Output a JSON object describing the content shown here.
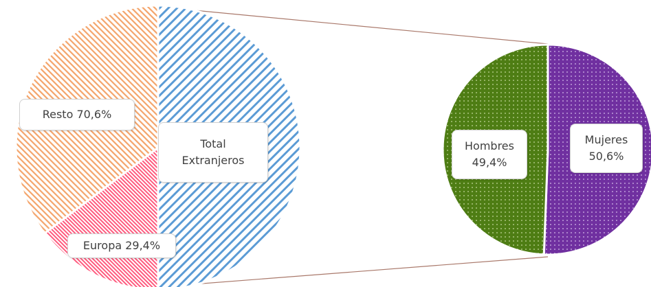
{
  "chart_data": [
    {
      "type": "pie",
      "slices": [
        {
          "name": "Total Extranjeros",
          "label_lines": [
            "Total",
            "Extranjeros"
          ],
          "value": 50,
          "color": "#5b9bd5",
          "pattern": "diagonal-stripes"
        },
        {
          "name": "Europa",
          "label_lines": [
            "Europa 29,4%"
          ],
          "value": 14.7,
          "color": "#ff5a7e",
          "pattern": "dense-diagonal-stripes"
        },
        {
          "name": "Resto",
          "label_lines": [
            "Resto 70,6%"
          ],
          "value": 35.3,
          "color": "#f4b183",
          "pattern": "diagonal-stripes"
        }
      ]
    },
    {
      "type": "pie",
      "slices": [
        {
          "name": "Mujeres",
          "label_lines": [
            "Mujeres",
            "50,6%"
          ],
          "value": 50.6,
          "color": "#7030a0",
          "pattern": "dots"
        },
        {
          "name": "Hombres",
          "label_lines": [
            "Hombres",
            "49,4%"
          ],
          "value": 49.4,
          "color": "#4e7d14",
          "pattern": "dots"
        }
      ]
    }
  ],
  "colors": {
    "connector": "#a9786a"
  }
}
